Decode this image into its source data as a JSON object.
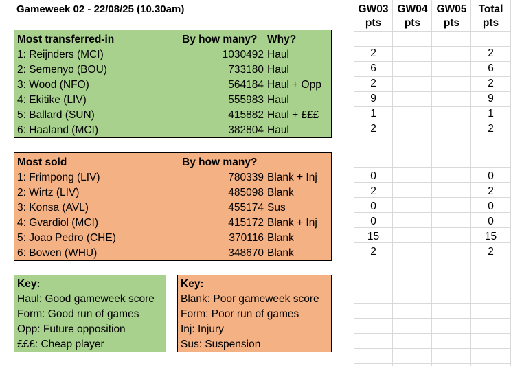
{
  "title": "Gameweek 02 - 22/08/25 (10.30am)",
  "transferred_in": {
    "header": {
      "label": "Most transferred-in",
      "how": "By how many?",
      "why": "Why?"
    },
    "rows": [
      {
        "name": "1: Reijnders (MCI)",
        "count": "1030492",
        "why": "Haul"
      },
      {
        "name": "2: Semenyo (BOU)",
        "count": "733180",
        "why": "Haul"
      },
      {
        "name": "3: Wood (NFO)",
        "count": "564184",
        "why": "Haul + Opp"
      },
      {
        "name": "4: Ekitike (LIV)",
        "count": "555983",
        "why": "Haul"
      },
      {
        "name": "5: Ballard (SUN)",
        "count": "415882",
        "why": "Haul + £££"
      },
      {
        "name": "6: Haaland (MCI)",
        "count": "382804",
        "why": "Haul"
      }
    ]
  },
  "sold": {
    "header": {
      "label": "Most sold",
      "how": "By how many?"
    },
    "rows": [
      {
        "name": "1: Frimpong (LIV)",
        "count": "780339",
        "why": "Blank + Inj"
      },
      {
        "name": "2: Wirtz (LIV)",
        "count": "485098",
        "why": "Blank"
      },
      {
        "name": "3: Konsa (AVL)",
        "count": "455174",
        "why": "Sus"
      },
      {
        "name": "4: Gvardiol (MCI)",
        "count": "415172",
        "why": "Blank + Inj"
      },
      {
        "name": "5: Joao Pedro (CHE)",
        "count": "370116",
        "why": "Blank"
      },
      {
        "name": "6: Bowen (WHU)",
        "count": "348670",
        "why": "Blank"
      }
    ]
  },
  "key_green": {
    "title": "Key:",
    "items": [
      "Haul: Good gameweek score",
      "Form: Good run of games",
      "Opp: Future opposition",
      "£££: Cheap player"
    ]
  },
  "key_orange": {
    "title": "Key:",
    "items": [
      "Blank: Poor gameweek score",
      "Form: Poor run of games",
      "Inj: Injury",
      "Sus: Suspension"
    ]
  },
  "points": {
    "headers": [
      "GW03",
      "GW04",
      "GW05",
      "Total"
    ],
    "subheaders": [
      "pts",
      "pts",
      "pts",
      "pts"
    ],
    "in_rows": [
      {
        "gw03": "2",
        "total": "2"
      },
      {
        "gw03": "6",
        "total": "6"
      },
      {
        "gw03": "2",
        "total": "2"
      },
      {
        "gw03": "9",
        "total": "9"
      },
      {
        "gw03": "1",
        "total": "1"
      },
      {
        "gw03": "2",
        "total": "2"
      }
    ],
    "sold_rows": [
      {
        "gw03": "0",
        "total": "0"
      },
      {
        "gw03": "2",
        "total": "2"
      },
      {
        "gw03": "0",
        "total": "0"
      },
      {
        "gw03": "0",
        "total": "0"
      },
      {
        "gw03": "15",
        "total": "15"
      },
      {
        "gw03": "2",
        "total": "2"
      }
    ]
  }
}
